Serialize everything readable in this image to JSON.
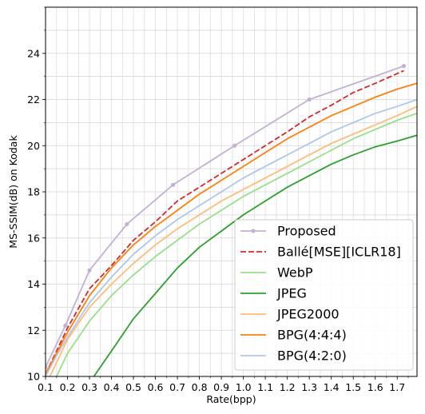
{
  "chart_data": {
    "type": "line",
    "xlabel": "Rate(bpp)",
    "ylabel": "MS-SSIM(dB) on Kodak",
    "xlim": [
      0.1,
      1.79
    ],
    "ylim": [
      10,
      26
    ],
    "x_ticks": [
      0.1,
      0.2,
      0.3,
      0.4,
      0.5,
      0.6,
      0.7,
      0.8,
      0.9,
      1.0,
      1.1,
      1.2,
      1.3,
      1.4,
      1.5,
      1.6,
      1.7
    ],
    "x_tick_labels": [
      "0.1",
      "0.2",
      "0.3",
      "0.4",
      "0.5",
      "0.6",
      "0.7",
      "0.8",
      "0.9",
      "1.0",
      "1.1",
      "1.2",
      "1.3",
      "1.4",
      "1.5",
      "1.6",
      "1.7"
    ],
    "x_minor_step": 0.05,
    "y_ticks": [
      10,
      12,
      14,
      16,
      18,
      20,
      22,
      24
    ],
    "y_tick_labels": [
      "10",
      "12",
      "14",
      "16",
      "18",
      "20",
      "22",
      "24"
    ],
    "y_minor_step": 1,
    "grid": true,
    "legend_position": "bottom-right",
    "series": [
      {
        "name": "Proposed",
        "color": "#c5b0d5",
        "dash": "solid",
        "marker": "circle",
        "x": [
          0.1,
          0.19,
          0.3,
          0.47,
          0.68,
          0.96,
          1.3,
          1.73
        ],
        "y": [
          10.4,
          12.2,
          14.6,
          16.6,
          18.3,
          20.0,
          22.0,
          23.45
        ]
      },
      {
        "name": "Ballé[MSE][ICLR18]",
        "color": "#d62728",
        "dash": "dashed",
        "marker": "none",
        "x": [
          0.1,
          0.15,
          0.2,
          0.3,
          0.4,
          0.5,
          0.6,
          0.7,
          0.8,
          0.9,
          1.0,
          1.1,
          1.2,
          1.3,
          1.4,
          1.5,
          1.6,
          1.73
        ],
        "y": [
          10.1,
          11.1,
          12.1,
          13.8,
          14.8,
          15.9,
          16.7,
          17.6,
          18.2,
          18.8,
          19.4,
          20.0,
          20.6,
          21.25,
          21.75,
          22.3,
          22.7,
          23.25
        ]
      },
      {
        "name": "WebP",
        "color": "#98df8a",
        "dash": "solid",
        "marker": "none",
        "x": [
          0.15,
          0.2,
          0.3,
          0.4,
          0.5,
          0.6,
          0.7,
          0.8,
          0.9,
          1.0,
          1.1,
          1.2,
          1.3,
          1.4,
          1.5,
          1.6,
          1.7,
          1.79
        ],
        "y": [
          10.0,
          11.0,
          12.4,
          13.5,
          14.4,
          15.2,
          15.9,
          16.6,
          17.2,
          17.8,
          18.3,
          18.8,
          19.3,
          19.8,
          20.3,
          20.7,
          21.1,
          21.4
        ]
      },
      {
        "name": "JPEG",
        "color": "#2ca02c",
        "dash": "solid",
        "marker": "none",
        "x": [
          0.32,
          0.4,
          0.5,
          0.6,
          0.7,
          0.8,
          0.9,
          1.0,
          1.1,
          1.2,
          1.3,
          1.4,
          1.5,
          1.6,
          1.7,
          1.79
        ],
        "y": [
          10.0,
          11.1,
          12.5,
          13.6,
          14.7,
          15.6,
          16.3,
          17.0,
          17.6,
          18.2,
          18.7,
          19.2,
          19.6,
          19.95,
          20.2,
          20.45
        ]
      },
      {
        "name": "JPEG2000",
        "color": "#ffbb78",
        "dash": "solid",
        "marker": "none",
        "x": [
          0.12,
          0.2,
          0.3,
          0.4,
          0.5,
          0.6,
          0.7,
          0.8,
          0.9,
          1.0,
          1.1,
          1.2,
          1.3,
          1.4,
          1.5,
          1.6,
          1.7,
          1.79
        ],
        "y": [
          10.0,
          11.6,
          13.0,
          14.0,
          14.9,
          15.7,
          16.4,
          17.0,
          17.6,
          18.1,
          18.6,
          19.1,
          19.6,
          20.1,
          20.5,
          20.9,
          21.3,
          21.7
        ]
      },
      {
        "name": "BPG(4:4:4)",
        "color": "#ff7f0e",
        "dash": "solid",
        "marker": "none",
        "x": [
          0.1,
          0.15,
          0.2,
          0.3,
          0.4,
          0.5,
          0.6,
          0.7,
          0.8,
          0.9,
          1.0,
          1.1,
          1.2,
          1.3,
          1.4,
          1.5,
          1.6,
          1.7,
          1.79
        ],
        "y": [
          10.1,
          11.0,
          11.9,
          13.5,
          14.7,
          15.7,
          16.5,
          17.2,
          17.9,
          18.5,
          19.1,
          19.7,
          20.3,
          20.8,
          21.3,
          21.7,
          22.1,
          22.45,
          22.7
        ]
      },
      {
        "name": "BPG(4:2:0)",
        "color": "#aec7e8",
        "dash": "solid",
        "marker": "none",
        "x": [
          0.1,
          0.15,
          0.2,
          0.3,
          0.4,
          0.5,
          0.6,
          0.7,
          0.8,
          0.9,
          1.0,
          1.1,
          1.2,
          1.3,
          1.4,
          1.5,
          1.6,
          1.7,
          1.79
        ],
        "y": [
          10.0,
          10.9,
          11.7,
          13.2,
          14.3,
          15.3,
          16.1,
          16.8,
          17.4,
          18.0,
          18.6,
          19.1,
          19.6,
          20.1,
          20.6,
          21.0,
          21.4,
          21.7,
          22.0
        ]
      }
    ]
  }
}
